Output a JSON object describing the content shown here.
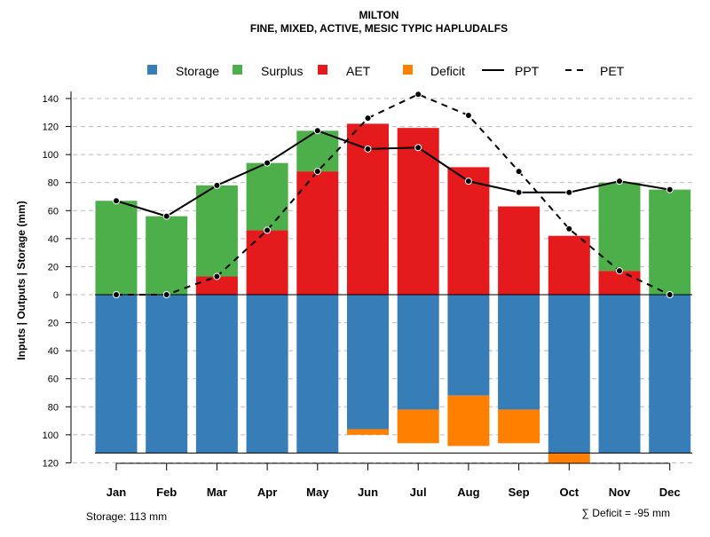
{
  "chart_data": {
    "type": "bar",
    "title": "MILTON",
    "subtitle": "FINE, MIXED, ACTIVE, MESIC TYPIC HAPLUDALFS",
    "ylabel": "Inputs | Outputs | Storage    (mm)",
    "xlabel": "",
    "ylim": [
      -120,
      140
    ],
    "yticks": [
      140,
      120,
      100,
      80,
      60,
      40,
      20,
      0,
      -20,
      -40,
      -60,
      -80,
      -100,
      -120
    ],
    "ytick_labels": [
      "140",
      "120",
      "100",
      "80",
      "60",
      "40",
      "20",
      "0",
      "20",
      "40",
      "60",
      "80",
      "100",
      "120"
    ],
    "grid": true,
    "legend_position": "top",
    "categories": [
      "Jan",
      "Feb",
      "Mar",
      "Apr",
      "May",
      "Jun",
      "Jul",
      "Aug",
      "Sep",
      "Oct",
      "Nov",
      "Dec"
    ],
    "series": [
      {
        "name": "Storage",
        "kind": "bar-below",
        "color": "#377EB8",
        "values": [
          113,
          113,
          113,
          113,
          113,
          96,
          82,
          72,
          82,
          113,
          113,
          113
        ]
      },
      {
        "name": "Surplus",
        "kind": "bar-above",
        "color": "#4DAF4A",
        "values": [
          67,
          56,
          65,
          48,
          29,
          0,
          0,
          0,
          0,
          0,
          63,
          75
        ]
      },
      {
        "name": "AET",
        "kind": "bar-above",
        "color": "#E41A1C",
        "values": [
          0,
          0,
          13,
          46,
          88,
          122,
          119,
          91,
          63,
          42,
          17,
          0
        ]
      },
      {
        "name": "Deficit",
        "kind": "bar-below",
        "color": "#FF7F00",
        "values": [
          0,
          0,
          0,
          0,
          0,
          4,
          24,
          36,
          24,
          7,
          0,
          0
        ]
      },
      {
        "name": "PPT",
        "kind": "line",
        "dash": "solid",
        "color": "#000000",
        "values": [
          67,
          56,
          78,
          94,
          117,
          104,
          105,
          81,
          73,
          73,
          81,
          75
        ]
      },
      {
        "name": "PET",
        "kind": "line",
        "dash": "dashed",
        "color": "#000000",
        "values": [
          0,
          0,
          13,
          46,
          88,
          126,
          143,
          128,
          88,
          47,
          17,
          0
        ]
      }
    ],
    "annotations": {
      "storage": "Storage: 113 mm",
      "deficit": "∑ Deficit = -95 mm"
    }
  }
}
